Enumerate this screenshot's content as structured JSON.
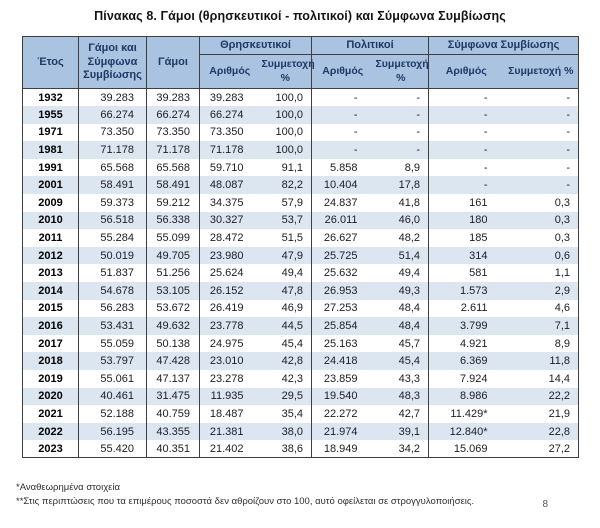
{
  "title": "Πίνακας 8. Γάμοι (θρησκευτικοί - πολιτικοί) και Σύμφωνα Συμβίωσης",
  "colors": {
    "header_bg": "#a9c3e1",
    "stripe_bg": "#dce6f1",
    "header_text": "#1f3864",
    "border_dark": "#3f3f3f"
  },
  "table": {
    "columns": {
      "year": "Έτος",
      "total": "Γάμοι και Σύμφωνα Συμβίωσης",
      "marriages": "Γάμοι",
      "groups": [
        {
          "label": "Θρησκευτικοί",
          "sub": [
            "Αριθμός",
            "Συμμετοχή %"
          ]
        },
        {
          "label": "Πολιτικοί",
          "sub": [
            "Αριθμός",
            "Συμμετοχή %"
          ]
        },
        {
          "label": "Σύμφωνα Συμβίωσης",
          "sub": [
            "Αριθμός",
            "Συμμετοχή %"
          ]
        }
      ]
    },
    "rows": [
      [
        "1932",
        "39.283",
        "39.283",
        "39.283",
        "100,0",
        "-",
        "-",
        "-",
        "-"
      ],
      [
        "1955",
        "66.274",
        "66.274",
        "66.274",
        "100,0",
        "-",
        "-",
        "-",
        "-"
      ],
      [
        "1971",
        "73.350",
        "73.350",
        "73.350",
        "100,0",
        "-",
        "-",
        "-",
        "-"
      ],
      [
        "1981",
        "71.178",
        "71.178",
        "71.178",
        "100,0",
        "-",
        "-",
        "-",
        "-"
      ],
      [
        "1991",
        "65.568",
        "65.568",
        "59.710",
        "91,1",
        "5.858",
        "8,9",
        "-",
        "-"
      ],
      [
        "2001",
        "58.491",
        "58.491",
        "48.087",
        "82,2",
        "10.404",
        "17,8",
        "-",
        "-"
      ],
      [
        "2009",
        "59.373",
        "59.212",
        "34.375",
        "57,9",
        "24.837",
        "41,8",
        "161",
        "0,3"
      ],
      [
        "2010",
        "56.518",
        "56.338",
        "30.327",
        "53,7",
        "26.011",
        "46,0",
        "180",
        "0,3"
      ],
      [
        "2011",
        "55.284",
        "55.099",
        "28.472",
        "51,5",
        "26.627",
        "48,2",
        "185",
        "0,3"
      ],
      [
        "2012",
        "50.019",
        "49.705",
        "23.980",
        "47,9",
        "25.725",
        "51,4",
        "314",
        "0,6"
      ],
      [
        "2013",
        "51.837",
        "51.256",
        "25.624",
        "49,4",
        "25.632",
        "49,4",
        "581",
        "1,1"
      ],
      [
        "2014",
        "54.678",
        "53.105",
        "26.152",
        "47,8",
        "26.953",
        "49,3",
        "1.573",
        "2,9"
      ],
      [
        "2015",
        "56.283",
        "53.672",
        "26.419",
        "46,9",
        "27.253",
        "48,4",
        "2.611",
        "4,6"
      ],
      [
        "2016",
        "53.431",
        "49.632",
        "23.778",
        "44,5",
        "25.854",
        "48,4",
        "3.799",
        "7,1"
      ],
      [
        "2017",
        "55.059",
        "50.138",
        "24.975",
        "45,4",
        "25.163",
        "45,7",
        "4.921",
        "8,9"
      ],
      [
        "2018",
        "53.797",
        "47.428",
        "23.010",
        "42,8",
        "24.418",
        "45,4",
        "6.369",
        "11,8"
      ],
      [
        "2019",
        "55.061",
        "47.137",
        "23.278",
        "42,3",
        "23.859",
        "43,3",
        "7.924",
        "14,4"
      ],
      [
        "2020",
        "40.461",
        "31.475",
        "11.935",
        "29,5",
        "19.540",
        "48,3",
        "8.986",
        "22,2"
      ],
      [
        "2021",
        "52.188",
        "40.759",
        "18.487",
        "35,4",
        "22.272",
        "42,7",
        "11.429*",
        "21,9"
      ],
      [
        "2022",
        "56.195",
        "43.355",
        "21.381",
        "38,0",
        "21.974",
        "39,1",
        "12.840*",
        "22,8"
      ],
      [
        "2023",
        "55.420",
        "40.351",
        "21.402",
        "38,6",
        "18.949",
        "34,2",
        "15.069",
        "27,2"
      ]
    ]
  },
  "footnotes": [
    "*Αναθεωρημένα στοιχεία",
    "**Στις περιπτώσεις που τα επιμέρους ποσοστά δεν αθροίζουν στο 100, αυτό οφείλεται σε στρογγυλοποιήσεις."
  ],
  "page_number": "8"
}
